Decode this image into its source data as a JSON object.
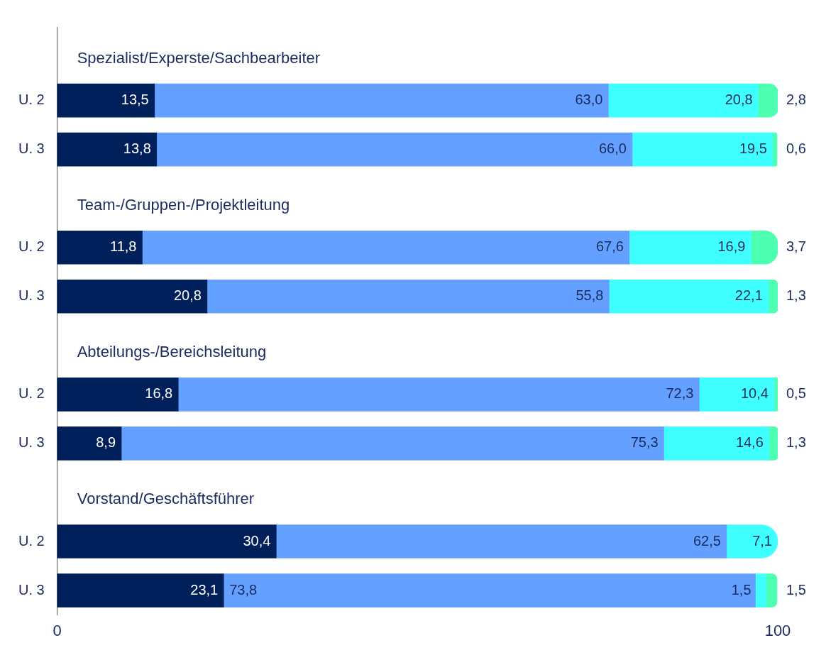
{
  "chart_data": {
    "type": "bar",
    "orientation": "horizontal",
    "stacked": true,
    "grid": false,
    "legend": false,
    "categories": [
      null,
      "U. 2",
      "U. 3",
      null,
      "U. 2",
      "U. 3",
      null,
      "U. 2",
      "U. 3",
      null,
      "U. 2",
      "U. 3"
    ],
    "annotations": [
      "Spezialist/Experste/Sachbearbeiter",
      "Team-/Gruppen-/Projektleitung",
      "Abteilungs-/Bereichsleitung",
      "Vorstand/Geschäftsführer"
    ],
    "series": [
      {
        "color": "#00205b",
        "values": [
          null,
          13.5,
          13.8,
          null,
          11.8,
          20.8,
          null,
          16.8,
          8.9,
          null,
          30.4,
          23.1
        ],
        "value_labels": [
          null,
          "13,5",
          "13,8",
          null,
          "11,8",
          "20,8",
          null,
          "16,8",
          "8,9",
          null,
          "30,4",
          "23,1"
        ]
      },
      {
        "color": "#64a0ff",
        "values": [
          null,
          63.0,
          66.0,
          null,
          67.6,
          55.8,
          null,
          72.3,
          75.3,
          null,
          62.5,
          73.8
        ],
        "value_labels": [
          null,
          "63,0",
          "66,0",
          null,
          "67,6",
          "55,8",
          null,
          "72,3",
          "75,3",
          null,
          "62,5",
          "73,8"
        ]
      },
      {
        "color": "#40ffff",
        "values": [
          null,
          20.8,
          19.5,
          null,
          16.9,
          22.1,
          null,
          10.4,
          14.6,
          null,
          7.1,
          1.5
        ],
        "value_labels": [
          null,
          "20,8",
          "19,5",
          null,
          "16,9",
          "22,1",
          null,
          "10,4",
          "14,6",
          null,
          "7,1",
          "1,5"
        ]
      },
      {
        "color": "#4dffb0",
        "values": [
          null,
          2.8,
          0.6,
          null,
          3.7,
          1.3,
          null,
          0.5,
          1.3,
          null,
          null,
          1.5
        ],
        "value_labels": [
          null,
          "2,8",
          "0,6",
          null,
          "3,7",
          "1,3",
          null,
          "0,5",
          "1,3",
          null,
          null,
          "1,5"
        ]
      }
    ],
    "xlim": [
      0,
      100
    ],
    "xticks": [
      0,
      100
    ]
  }
}
